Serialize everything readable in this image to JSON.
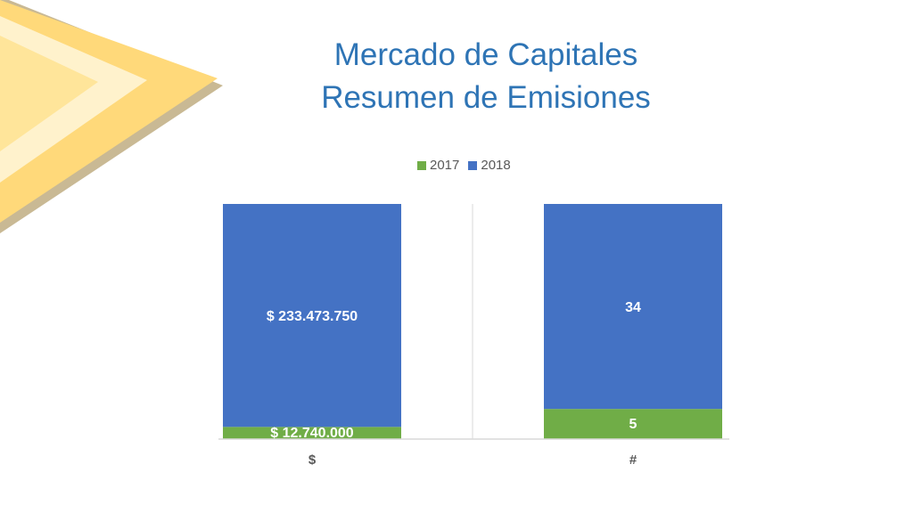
{
  "title": {
    "line1": "Mercado de Capitales",
    "line2": "Resumen de Emisiones"
  },
  "colors": {
    "accent": "#2E74B5",
    "series_2017": "#70AD47",
    "series_2018": "#4472C4",
    "deco_yellow": "#FFD97A",
    "deco_cream": "#FFF2CC",
    "deco_shadow": "#C9B994"
  },
  "chart_data": [
    {
      "type": "bar",
      "stacked": true,
      "normalized": true,
      "categories": [
        "$"
      ],
      "series": [
        {
          "name": "2017",
          "values": [
            12740000
          ],
          "labels": [
            "$ 12.740.000"
          ]
        },
        {
          "name": "2018",
          "values": [
            233473750
          ],
          "labels": [
            "$ 233.473.750"
          ]
        }
      ],
      "legend": "top"
    },
    {
      "type": "bar",
      "stacked": true,
      "normalized": true,
      "categories": [
        "#"
      ],
      "series": [
        {
          "name": "2017",
          "values": [
            5
          ],
          "labels": [
            "5"
          ]
        },
        {
          "name": "2018",
          "values": [
            34
          ],
          "labels": [
            "34"
          ]
        }
      ],
      "legend": "top"
    }
  ]
}
